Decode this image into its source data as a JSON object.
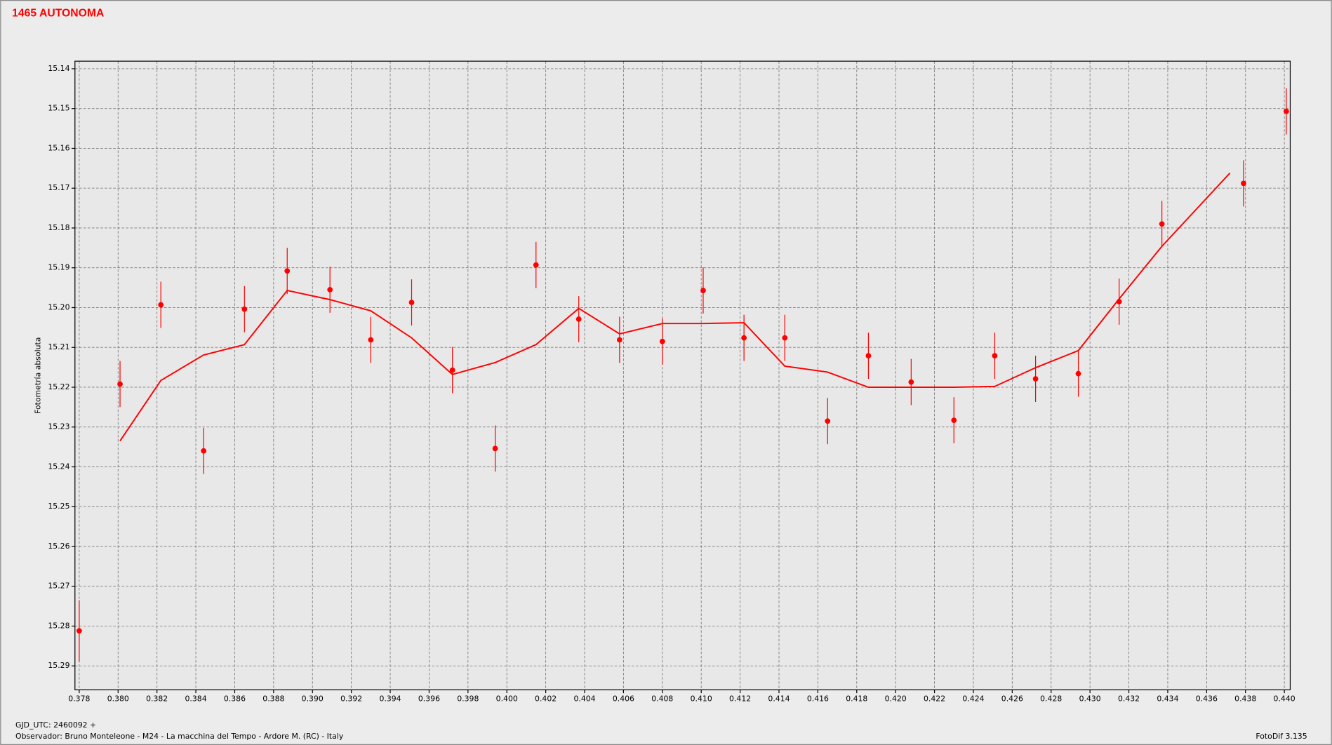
{
  "chart_data": {
    "type": "scatter",
    "title": "1465 AUTONOMA",
    "y_label": "Fotometría absoluta",
    "footer": [
      "GJD_UTC: 2460092 +",
      "Observador: Bruno Monteleone - M24 - La macchina del Tempo - Ardore M. (RC) - Italy"
    ],
    "software": "FotoDif 3.135",
    "y_inverted": true,
    "grid": true,
    "xlim": [
      0.37778,
      0.4403
    ],
    "ylim": [
      15.1381,
      15.296
    ],
    "xticks": [
      0.378,
      {
        "value": 0.38,
        "label": "0.380"
      },
      0.382,
      0.384,
      0.386,
      0.388,
      {
        "value": 0.39,
        "label": "0.390"
      },
      0.392,
      0.394,
      0.396,
      0.398,
      {
        "value": 0.4,
        "label": "0.400"
      },
      0.402,
      0.404,
      0.406,
      0.408,
      {
        "value": 0.41,
        "label": "0.410"
      },
      0.412,
      0.414,
      0.416,
      0.418,
      {
        "value": 0.42,
        "label": "0.420"
      },
      0.422,
      0.424,
      0.426,
      0.428,
      {
        "value": 0.43,
        "label": "0.430"
      },
      0.432,
      0.434,
      0.436,
      0.438,
      {
        "value": 0.44,
        "label": "0.440"
      }
    ],
    "yticks": [
      15.14,
      15.15,
      15.16,
      15.17,
      15.18,
      15.19,
      {
        "value": 15.2,
        "label": "15.20"
      },
      15.21,
      15.22,
      15.23,
      15.24,
      15.25,
      15.26,
      15.27,
      15.28,
      15.29
    ],
    "series": [
      {
        "color": "#ff0000",
        "x": [
          0.378,
          0.3801,
          0.3822,
          0.3844,
          0.3865,
          0.3887,
          0.3909,
          0.393,
          0.3951,
          0.3972,
          0.3994,
          0.4015,
          0.4037,
          0.4058,
          0.408,
          0.4101,
          0.4122,
          0.4143,
          0.4165,
          0.4186,
          0.4208,
          0.423,
          0.4251,
          0.4272,
          0.4294,
          0.4315,
          0.4337,
          0.4379,
          0.4401
        ],
        "values": [
          15.2812,
          15.2192,
          15.1993,
          15.236,
          15.2004,
          15.1908,
          15.1955,
          15.2081,
          15.1987,
          15.2157,
          15.2354,
          15.1893,
          15.2029,
          15.2081,
          15.2085,
          15.1957,
          15.2076,
          15.2076,
          15.2285,
          15.2121,
          15.2187,
          15.2283,
          15.2121,
          15.2179,
          15.2166,
          15.1985,
          15.179,
          15.1688,
          15.1507
        ],
        "errors": [
          0.0077,
          0.0058,
          0.0058,
          0.0058,
          0.0058,
          0.0058,
          0.0058,
          0.0058,
          0.0058,
          0.0058,
          0.0058,
          0.0058,
          0.0058,
          0.0058,
          0.0058,
          0.0058,
          0.0058,
          0.0058,
          0.0058,
          0.0058,
          0.0058,
          0.0058,
          0.0058,
          0.0058,
          0.0058,
          0.0058,
          0.0058,
          0.0058,
          0.0058
        ]
      },
      {
        "type": "line",
        "color": "#ff0000",
        "x": [
          0.3801,
          0.3822,
          0.3844,
          0.3865,
          0.3887,
          0.3909,
          0.393,
          0.3951,
          0.3972,
          0.3994,
          0.4015,
          0.4037,
          0.4058,
          0.408,
          0.4101,
          0.4122,
          0.4143,
          0.4165,
          0.4186,
          0.4208,
          0.423,
          0.4251,
          0.4272,
          0.4294,
          0.4315,
          0.4337,
          0.4372
        ],
        "values": [
          15.2335,
          15.2183,
          15.2119,
          15.2093,
          15.1957,
          15.198,
          15.2008,
          15.2076,
          15.2168,
          15.2138,
          15.2093,
          15.2002,
          15.2066,
          15.204,
          15.204,
          15.2038,
          15.2147,
          15.2162,
          15.22,
          15.22,
          15.22,
          15.2198,
          15.2151,
          15.2108,
          15.1978,
          15.1846,
          15.1662
        ]
      }
    ]
  }
}
